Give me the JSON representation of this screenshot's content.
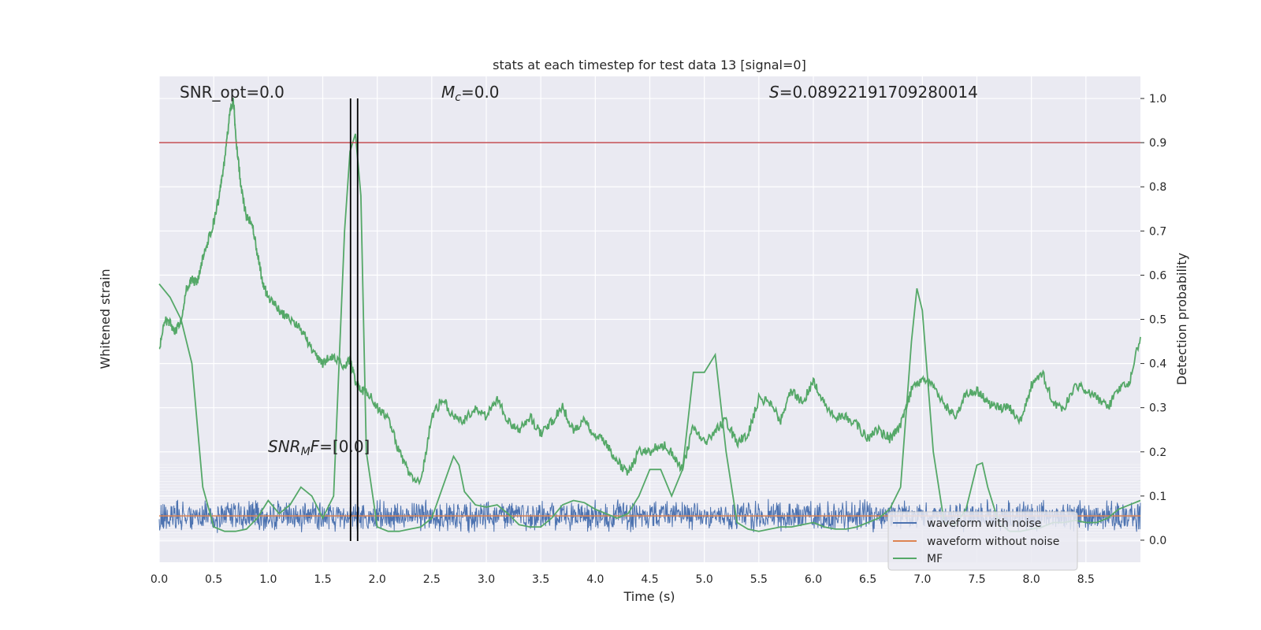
{
  "chart_data": {
    "type": "line",
    "title": "stats at each timestep for test data 13 [signal=0]",
    "xlabel": "Time (s)",
    "ylabel_left": "Whitened strain",
    "ylabel_right": "Detection probability",
    "xlim": [
      0.0,
      9.0
    ],
    "ylim_right": [
      -0.05,
      1.05
    ],
    "x_ticks": [
      "0.0",
      "0.5",
      "1.0",
      "1.5",
      "2.0",
      "2.5",
      "3.0",
      "3.5",
      "4.0",
      "4.5",
      "5.0",
      "5.5",
      "6.0",
      "6.5",
      "7.0",
      "7.5",
      "8.0",
      "8.5"
    ],
    "y_ticks_right": [
      "0.0",
      "0.1",
      "0.2",
      "0.3",
      "0.4",
      "0.5",
      "0.6",
      "0.7",
      "0.8",
      "0.9",
      "1.0"
    ],
    "grid": true,
    "legend_position": "lower-right",
    "annotations": {
      "snr_opt": "SNR_opt=0.0",
      "mc_prefix": "M",
      "mc_sub": "c",
      "mc_value": "=0.0",
      "s_prefix": "S",
      "s_value": "=0.08922191709280014",
      "snr_mf_prefix": "SNR",
      "snr_mf_sub": "M",
      "snr_mf_suffix": "F",
      "snr_mf_value": "=[0.0]"
    },
    "threshold": 0.9,
    "vlines_x": [
      1.755,
      1.82
    ],
    "colors": {
      "noise": "#4c72b0",
      "clean": "#dd8452",
      "mf": "#55a868",
      "threshold": "#c44e52",
      "vline": "#000000",
      "panel": "#eaeaf2",
      "grid": "#ffffff"
    },
    "series": [
      {
        "name": "waveform with noise",
        "color": "#4c72b0",
        "note_values": "whitened strain noise band centered at 0.055 with amplitude about 0.02 in detection-probability units"
      },
      {
        "name": "waveform without noise",
        "color": "#dd8452",
        "values": [
          0.055
        ]
      },
      {
        "name": "MF",
        "color": "#55a868",
        "x": [
          0.0,
          0.1,
          0.2,
          0.3,
          0.4,
          0.5,
          0.6,
          0.7,
          0.8,
          0.9,
          1.0,
          1.1,
          1.2,
          1.3,
          1.4,
          1.5,
          1.6,
          1.7,
          1.75,
          1.8,
          1.85,
          1.9,
          2.0,
          2.1,
          2.2,
          2.3,
          2.4,
          2.5,
          2.6,
          2.7,
          2.75,
          2.8,
          2.9,
          3.0,
          3.1,
          3.2,
          3.3,
          3.4,
          3.5,
          3.6,
          3.7,
          3.8,
          3.9,
          4.0,
          4.1,
          4.2,
          4.3,
          4.4,
          4.5,
          4.6,
          4.7,
          4.8,
          4.9,
          5.0,
          5.1,
          5.2,
          5.3,
          5.4,
          5.5,
          5.6,
          5.7,
          5.8,
          5.9,
          6.0,
          6.1,
          6.2,
          6.3,
          6.4,
          6.5,
          6.6,
          6.7,
          6.8,
          6.9,
          6.95,
          7.0,
          7.1,
          7.2,
          7.3,
          7.4,
          7.5,
          7.55,
          7.6,
          7.7,
          7.8,
          7.9,
          8.0,
          8.1,
          8.2,
          8.3,
          8.4,
          8.5,
          8.6,
          8.7,
          8.8,
          8.9,
          9.0
        ],
        "values": [
          0.58,
          0.55,
          0.5,
          0.4,
          0.12,
          0.03,
          0.02,
          0.02,
          0.025,
          0.05,
          0.09,
          0.06,
          0.08,
          0.12,
          0.1,
          0.05,
          0.1,
          0.7,
          0.88,
          0.92,
          0.78,
          0.2,
          0.03,
          0.02,
          0.02,
          0.025,
          0.03,
          0.05,
          0.12,
          0.19,
          0.17,
          0.11,
          0.08,
          0.075,
          0.08,
          0.06,
          0.035,
          0.03,
          0.03,
          0.05,
          0.08,
          0.09,
          0.085,
          0.07,
          0.06,
          0.05,
          0.06,
          0.1,
          0.16,
          0.16,
          0.1,
          0.16,
          0.38,
          0.38,
          0.42,
          0.2,
          0.04,
          0.025,
          0.02,
          0.025,
          0.03,
          0.03,
          0.035,
          0.04,
          0.03,
          0.025,
          0.025,
          0.03,
          0.04,
          0.05,
          0.07,
          0.12,
          0.45,
          0.57,
          0.52,
          0.2,
          0.04,
          0.035,
          0.07,
          0.17,
          0.175,
          0.12,
          0.04,
          0.02,
          0.02,
          0.025,
          0.03,
          0.04,
          0.04,
          0.045,
          0.04,
          0.04,
          0.05,
          0.07,
          0.08,
          0.09
        ]
      },
      {
        "name": "Detection probability",
        "color": "#55a868",
        "x": [
          0.0,
          0.05,
          0.1,
          0.15,
          0.2,
          0.25,
          0.3,
          0.35,
          0.4,
          0.45,
          0.5,
          0.55,
          0.6,
          0.65,
          0.68,
          0.7,
          0.75,
          0.8,
          0.85,
          0.9,
          0.95,
          1.0,
          1.1,
          1.2,
          1.3,
          1.4,
          1.5,
          1.6,
          1.7,
          1.75,
          1.8,
          1.85,
          1.9,
          2.0,
          2.1,
          2.2,
          2.3,
          2.4,
          2.5,
          2.6,
          2.7,
          2.8,
          2.9,
          3.0,
          3.1,
          3.2,
          3.3,
          3.4,
          3.5,
          3.6,
          3.7,
          3.8,
          3.9,
          4.0,
          4.1,
          4.2,
          4.3,
          4.4,
          4.5,
          4.6,
          4.7,
          4.8,
          4.9,
          5.0,
          5.1,
          5.2,
          5.3,
          5.4,
          5.5,
          5.6,
          5.7,
          5.8,
          5.9,
          6.0,
          6.1,
          6.2,
          6.3,
          6.4,
          6.5,
          6.6,
          6.7,
          6.8,
          6.9,
          7.0,
          7.1,
          7.2,
          7.3,
          7.4,
          7.5,
          7.6,
          7.7,
          7.8,
          7.9,
          8.0,
          8.1,
          8.2,
          8.3,
          8.4,
          8.5,
          8.6,
          8.7,
          8.8,
          8.9,
          9.0
        ],
        "values": [
          0.43,
          0.5,
          0.49,
          0.47,
          0.5,
          0.57,
          0.59,
          0.58,
          0.64,
          0.68,
          0.72,
          0.78,
          0.86,
          0.97,
          1.0,
          0.92,
          0.8,
          0.73,
          0.72,
          0.65,
          0.58,
          0.55,
          0.52,
          0.5,
          0.48,
          0.43,
          0.4,
          0.42,
          0.39,
          0.41,
          0.36,
          0.34,
          0.34,
          0.3,
          0.28,
          0.2,
          0.15,
          0.13,
          0.28,
          0.32,
          0.28,
          0.27,
          0.3,
          0.28,
          0.32,
          0.27,
          0.25,
          0.28,
          0.24,
          0.27,
          0.3,
          0.25,
          0.27,
          0.24,
          0.22,
          0.18,
          0.15,
          0.2,
          0.2,
          0.22,
          0.2,
          0.16,
          0.26,
          0.22,
          0.25,
          0.27,
          0.22,
          0.24,
          0.32,
          0.31,
          0.27,
          0.34,
          0.31,
          0.36,
          0.31,
          0.28,
          0.28,
          0.26,
          0.23,
          0.25,
          0.23,
          0.26,
          0.34,
          0.36,
          0.35,
          0.31,
          0.28,
          0.33,
          0.34,
          0.31,
          0.3,
          0.3,
          0.27,
          0.35,
          0.38,
          0.31,
          0.3,
          0.35,
          0.34,
          0.32,
          0.3,
          0.34,
          0.36,
          0.46
        ]
      }
    ]
  }
}
